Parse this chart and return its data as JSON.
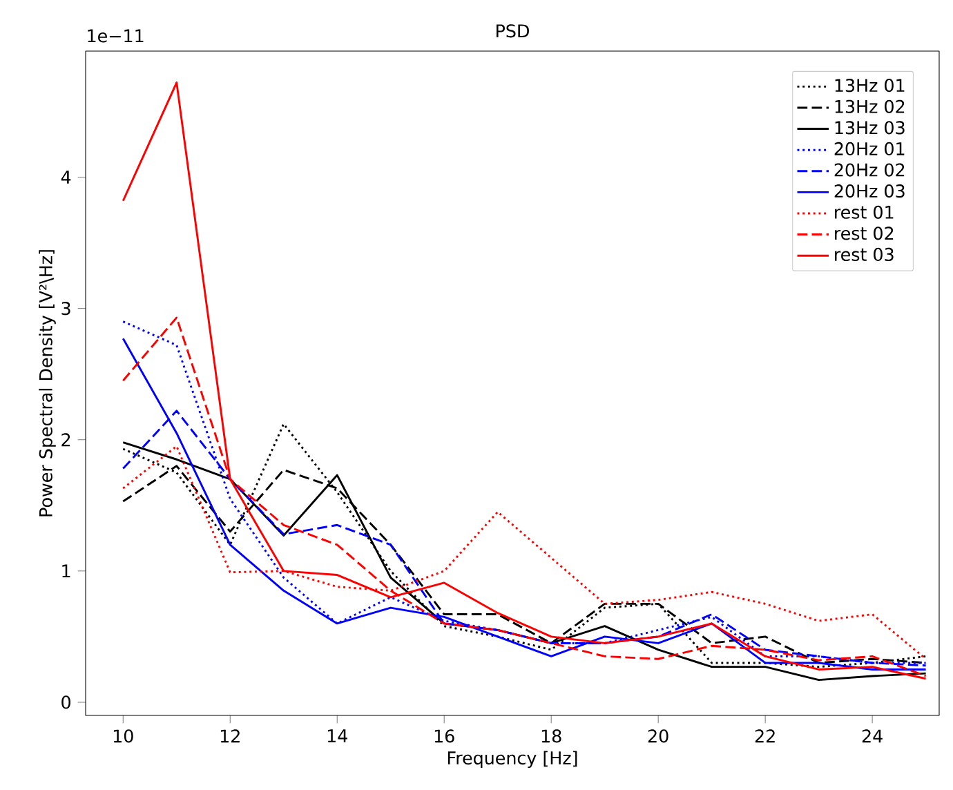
{
  "chart_data": {
    "type": "line",
    "title": "PSD",
    "xlabel": "Frequency [Hz]",
    "ylabel": "Power Spectral Density [V²\\Hz]",
    "annotations": [
      "1e−11"
    ],
    "x": [
      10,
      11,
      12,
      13,
      14,
      15,
      16,
      17,
      18,
      19,
      20,
      21,
      22,
      23,
      24,
      25
    ],
    "xlim": [
      9.3,
      25.25
    ],
    "ylim": [
      -0.1,
      4.96
    ],
    "xticks": [
      10,
      12,
      14,
      16,
      18,
      20,
      22,
      24
    ],
    "yticks": [
      0,
      1,
      2,
      3,
      4
    ],
    "grid": false,
    "legend": "top right",
    "marker": "none",
    "series": [
      {
        "name": "13Hz 01",
        "color": "#000000",
        "line_style": "dotted",
        "values": [
          1.93,
          1.75,
          1.2,
          2.12,
          1.6,
          1.0,
          0.58,
          0.5,
          0.4,
          0.72,
          0.75,
          0.3,
          0.3,
          0.27,
          0.3,
          0.35
        ]
      },
      {
        "name": "13Hz 02",
        "color": "#000000",
        "line_style": "dashed",
        "values": [
          1.53,
          1.8,
          1.3,
          1.77,
          1.63,
          1.2,
          0.67,
          0.67,
          0.45,
          0.75,
          0.75,
          0.45,
          0.5,
          0.3,
          0.33,
          0.3
        ]
      },
      {
        "name": "13Hz 03",
        "color": "#000000",
        "line_style": "solid",
        "values": [
          1.98,
          1.85,
          1.7,
          1.27,
          1.73,
          0.95,
          0.6,
          0.55,
          0.45,
          0.58,
          0.4,
          0.27,
          0.27,
          0.17,
          0.2,
          0.22
        ]
      },
      {
        "name": "20Hz 01",
        "color": "#0000ff",
        "line_style": "dotted",
        "values": [
          2.9,
          2.72,
          1.55,
          0.95,
          0.6,
          0.8,
          0.62,
          0.55,
          0.45,
          0.45,
          0.55,
          0.65,
          0.35,
          0.35,
          0.3,
          0.3
        ]
      },
      {
        "name": "20Hz 02",
        "color": "#0000ff",
        "line_style": "dashed",
        "values": [
          1.78,
          2.22,
          1.7,
          1.28,
          1.35,
          1.2,
          0.6,
          0.55,
          0.45,
          0.45,
          0.5,
          0.67,
          0.4,
          0.35,
          0.3,
          0.28
        ]
      },
      {
        "name": "20Hz 03",
        "color": "#0000ff",
        "line_style": "solid",
        "values": [
          2.77,
          2.05,
          1.2,
          0.85,
          0.6,
          0.72,
          0.65,
          0.5,
          0.35,
          0.5,
          0.45,
          0.6,
          0.3,
          0.3,
          0.25,
          0.25
        ]
      },
      {
        "name": "rest 01",
        "color": "#ff0000",
        "line_style": "dotted",
        "values": [
          1.63,
          1.95,
          0.99,
          1.0,
          0.88,
          0.85,
          1.0,
          1.45,
          1.1,
          0.75,
          0.78,
          0.84,
          0.75,
          0.62,
          0.67,
          0.33
        ]
      },
      {
        "name": "rest 02",
        "color": "#ff0000",
        "line_style": "dashed",
        "values": [
          2.45,
          2.93,
          1.7,
          1.35,
          1.2,
          0.85,
          0.6,
          0.55,
          0.45,
          0.35,
          0.33,
          0.43,
          0.4,
          0.32,
          0.35,
          0.2
        ]
      },
      {
        "name": "rest 03",
        "color": "#ff0000",
        "line_style": "solid",
        "values": [
          3.82,
          4.72,
          1.7,
          1.0,
          0.97,
          0.8,
          0.91,
          0.68,
          0.5,
          0.45,
          0.5,
          0.6,
          0.35,
          0.25,
          0.27,
          0.18
        ]
      }
    ]
  }
}
